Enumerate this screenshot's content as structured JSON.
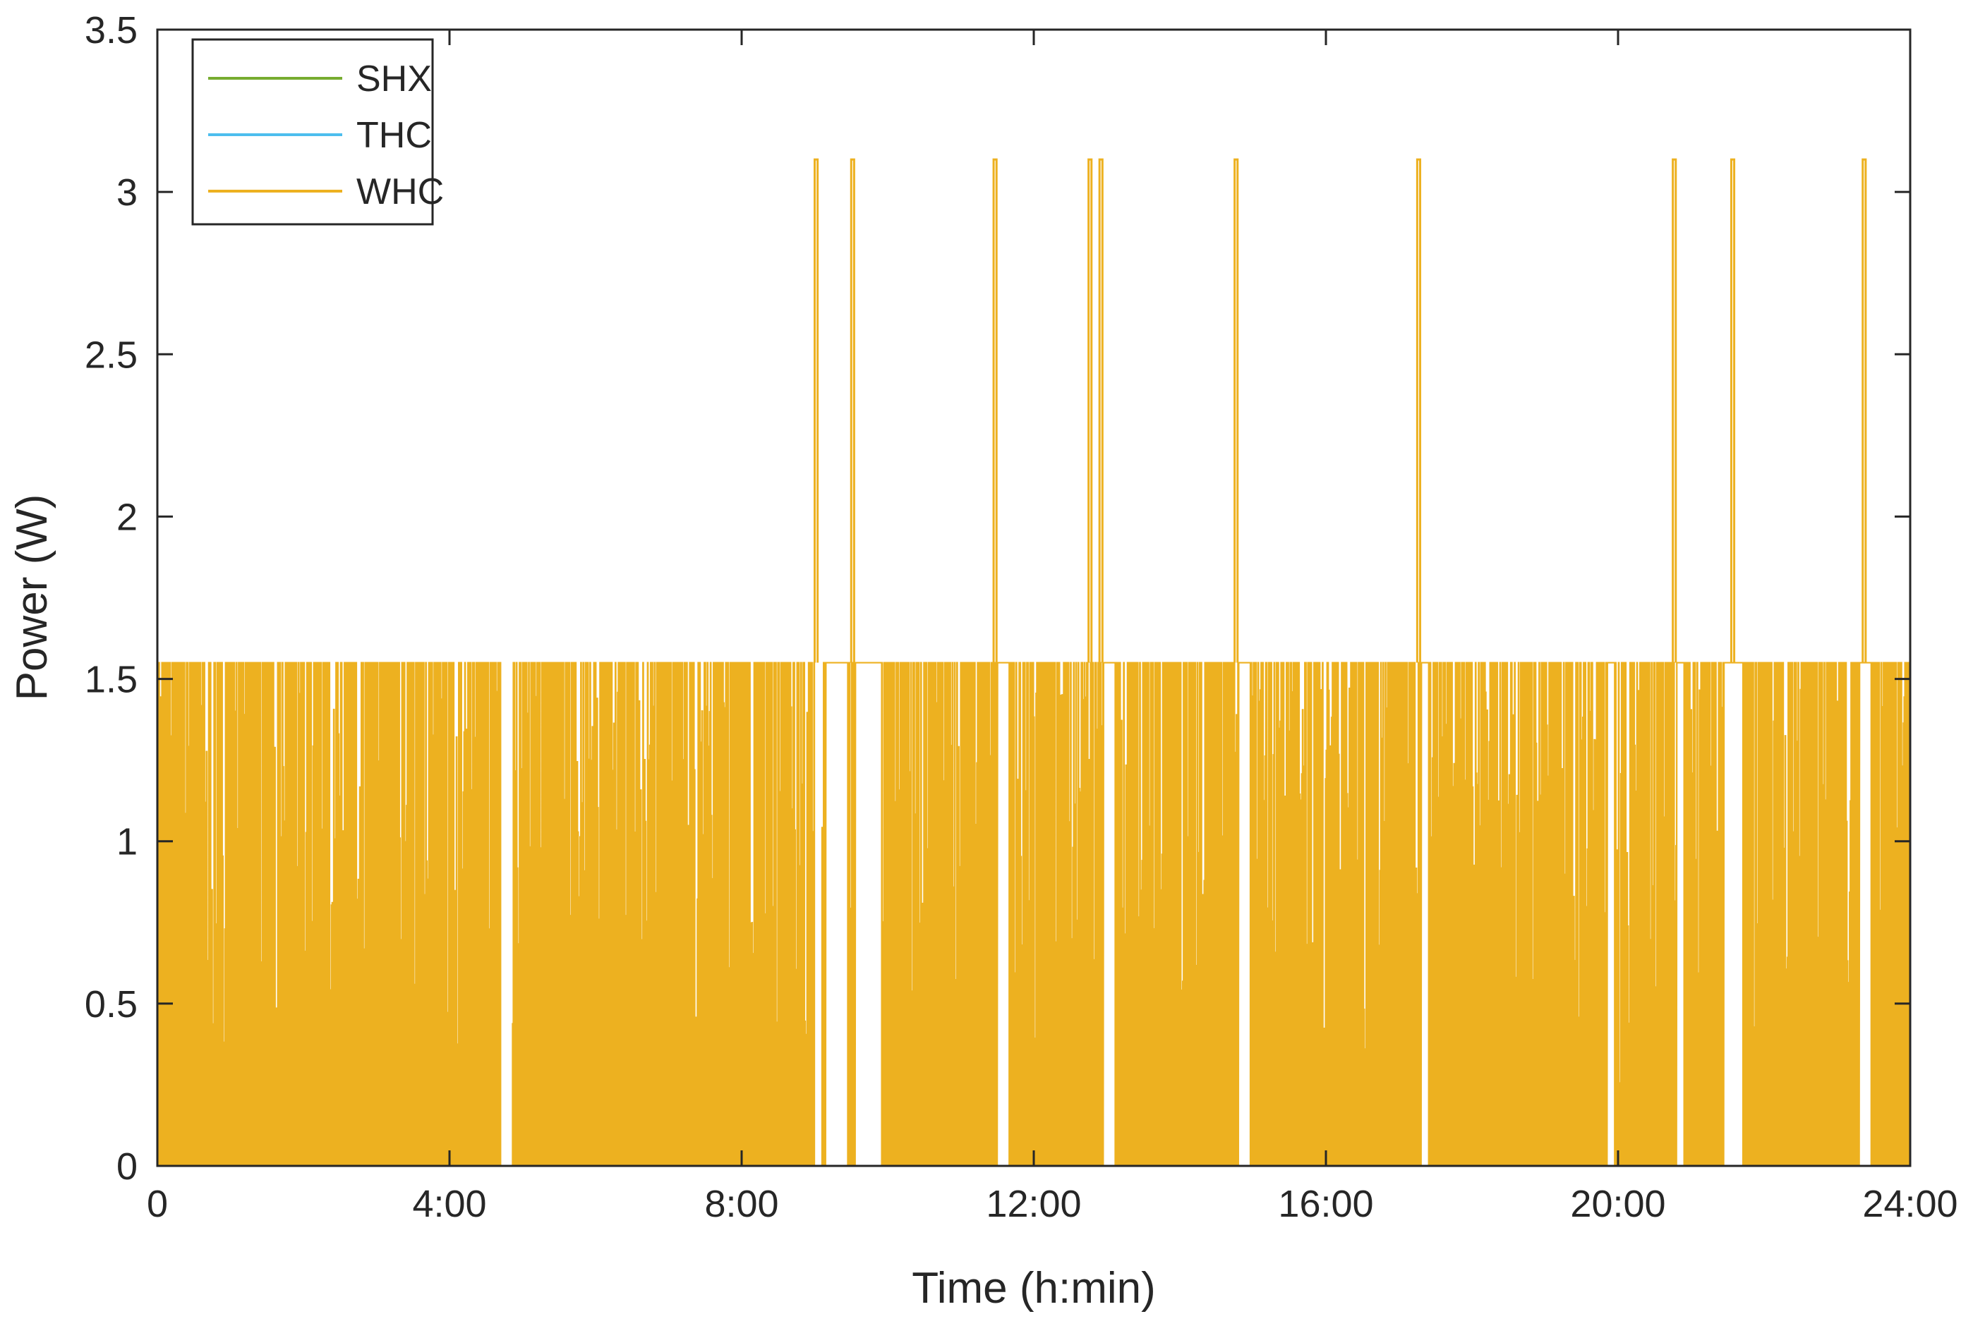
{
  "chart_data": {
    "type": "line",
    "xlabel": "Time (h:min)",
    "ylabel": "Power (W)",
    "xlim": [
      0,
      24
    ],
    "ylim": [
      0,
      3.5
    ],
    "x_unit": "hours",
    "x_ticks": [
      {
        "value": 0,
        "label": "0"
      },
      {
        "value": 4,
        "label": "4:00"
      },
      {
        "value": 8,
        "label": "8:00"
      },
      {
        "value": 12,
        "label": "12:00"
      },
      {
        "value": 16,
        "label": "16:00"
      },
      {
        "value": 20,
        "label": "20:00"
      },
      {
        "value": 24,
        "label": "24:00"
      }
    ],
    "y_ticks": [
      {
        "value": 0,
        "label": "0"
      },
      {
        "value": 0.5,
        "label": "0.5"
      },
      {
        "value": 1,
        "label": "1"
      },
      {
        "value": 1.5,
        "label": "1.5"
      },
      {
        "value": 2,
        "label": "2"
      },
      {
        "value": 2.5,
        "label": "2.5"
      },
      {
        "value": 3,
        "label": "3"
      },
      {
        "value": 3.5,
        "label": "3.5"
      }
    ],
    "grid": false,
    "legend_position": "top-left",
    "series": [
      {
        "name": "SHX",
        "color": "#77AC30",
        "description": "constant 0 W over the whole day",
        "x": [
          0,
          24
        ],
        "y": [
          0,
          0
        ]
      },
      {
        "name": "THC",
        "color": "#4DBEEE",
        "description": "constant 0 W over the whole day",
        "x": [
          0,
          24
        ],
        "y": [
          0,
          0
        ]
      },
      {
        "name": "WHC",
        "color": "#EDB120",
        "description": "rapid on/off switching between 0 and ~1.55 W all day; densely filled band; gaps where it rests at 1.55 W or 0 W",
        "switching_level": 1.55,
        "peak_level": 3.1,
        "peaks": [
          {
            "x": 9.0,
            "y": 3.1
          },
          {
            "x": 9.5,
            "y": 3.1
          },
          {
            "x": 11.45,
            "y": 3.1
          },
          {
            "x": 12.75,
            "y": 3.1
          },
          {
            "x": 12.9,
            "y": 3.1
          },
          {
            "x": 14.75,
            "y": 3.1
          },
          {
            "x": 17.25,
            "y": 3.1
          },
          {
            "x": 20.75,
            "y": 3.1
          },
          {
            "x": 21.55,
            "y": 3.1
          },
          {
            "x": 23.35,
            "y": 3.1
          }
        ],
        "high_rest_intervals": [
          [
            9.15,
            9.45
          ],
          [
            9.55,
            9.9
          ],
          [
            11.5,
            11.65
          ],
          [
            12.95,
            13.1
          ],
          [
            14.8,
            14.95
          ],
          [
            17.3,
            17.4
          ],
          [
            19.85,
            19.95
          ],
          [
            20.8,
            20.9
          ],
          [
            21.45,
            21.7
          ],
          [
            23.3,
            23.45
          ]
        ],
        "zero_rest_intervals": [
          [
            4.7,
            4.85
          ],
          [
            9.0,
            9.1
          ],
          [
            9.6,
            9.65
          ]
        ]
      }
    ]
  }
}
